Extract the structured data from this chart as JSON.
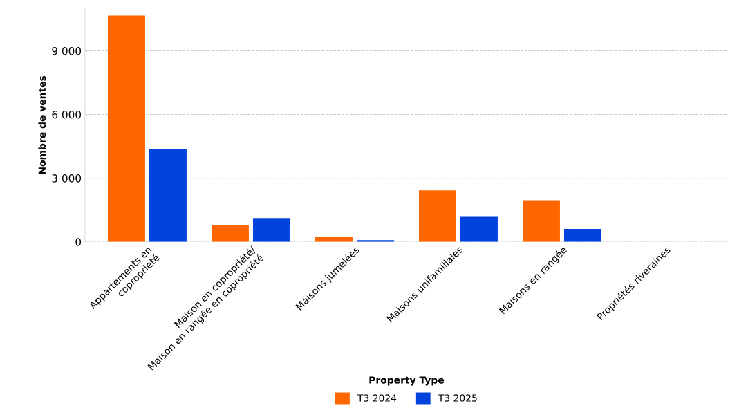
{
  "chart_data": {
    "type": "bar",
    "categories": [
      "Appartements en\ncopropriété",
      "Maison en copropriété/\nMaison en rangée en copropriété",
      "Maisons jumelées",
      "Maisons unifamiliales",
      "Maisons en rangée",
      "Propriétés riveraines"
    ],
    "series": [
      {
        "name": "T3 2024",
        "color": "#ff6600",
        "values": [
          10660,
          790,
          220,
          2430,
          1960,
          0
        ]
      },
      {
        "name": "T3 2025",
        "color": "#0044dd",
        "values": [
          4370,
          1120,
          80,
          1180,
          610,
          0
        ]
      }
    ],
    "xlabel": "Property Type",
    "ylabel": "Nombre de ventes",
    "ylim": [
      0,
      11000
    ],
    "yticks": [
      {
        "value": 0,
        "label": "0"
      },
      {
        "value": 3000,
        "label": "3 000"
      },
      {
        "value": 6000,
        "label": "6 000"
      },
      {
        "value": 9000,
        "label": "9 000"
      }
    ],
    "grid": "y",
    "legend": "bottom"
  }
}
